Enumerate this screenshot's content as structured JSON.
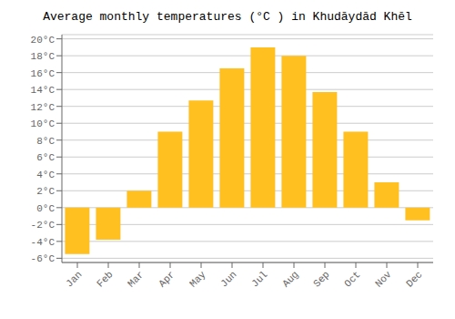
{
  "chart_data": {
    "type": "bar",
    "title": "Average monthly temperatures (°C ) in Khudāydād Khēl",
    "categories": [
      "Jan",
      "Feb",
      "Mar",
      "Apr",
      "May",
      "Jun",
      "Jul",
      "Aug",
      "Sep",
      "Oct",
      "Nov",
      "Dec"
    ],
    "values": [
      -5.5,
      -3.8,
      2.0,
      9.0,
      12.7,
      16.5,
      19.0,
      18.0,
      13.7,
      9.0,
      3.0,
      -1.5
    ],
    "color": "#FFC020",
    "ylim": [
      -6.5,
      20.5
    ],
    "yticks": [
      {
        "value": -6,
        "label": "-6°C"
      },
      {
        "value": -4,
        "label": "-4°C"
      },
      {
        "value": -2,
        "label": "-2°C"
      },
      {
        "value": 0,
        "label": "0°C"
      },
      {
        "value": 2,
        "label": "2°C"
      },
      {
        "value": 4,
        "label": "4°C"
      },
      {
        "value": 6,
        "label": "6°C"
      },
      {
        "value": 8,
        "label": "8°C"
      },
      {
        "value": 10,
        "label": "10°C"
      },
      {
        "value": 12,
        "label": "12°C"
      },
      {
        "value": 14,
        "label": "14°C"
      },
      {
        "value": 16,
        "label": "16°C"
      },
      {
        "value": 18,
        "label": "18°C"
      },
      {
        "value": 20,
        "label": "20°C"
      }
    ],
    "grid": true
  }
}
